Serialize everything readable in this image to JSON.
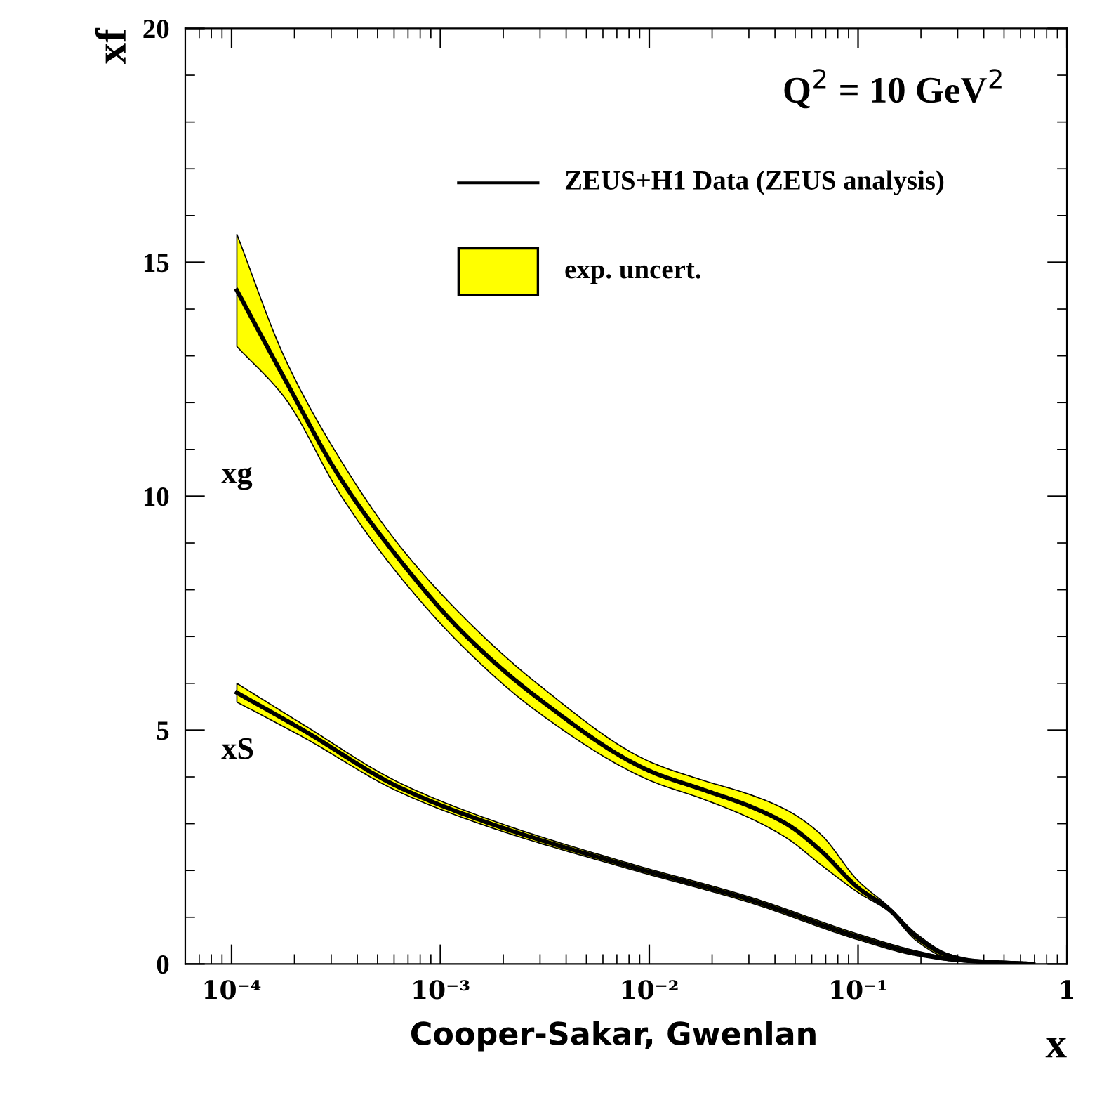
{
  "chart_data": {
    "type": "line",
    "xlabel": "x",
    "ylabel": "xf",
    "annotations": [
      "Q$^{2}$ = 10 GeV$^{2}$",
      "ZEUS+H1 Data (ZEUS analysis)",
      "exp. uncert.",
      "Cooper-Sakar, Gwenlan"
    ],
    "series": [
      {
        "name": "xg",
        "color": "#000000",
        "x": [
          0.000106,
          0.00018,
          0.00033,
          0.00061,
          0.00127,
          0.0029,
          0.01,
          0.018,
          0.03,
          0.046,
          0.066,
          0.1,
          0.14,
          0.19,
          0.27,
          0.37,
          0.69
        ],
        "values": [
          14.4,
          12.5,
          10.4,
          8.75,
          7.1,
          5.7,
          4.13,
          3.73,
          3.38,
          2.98,
          2.43,
          1.63,
          1.18,
          0.58,
          0.18,
          0.06,
          0.0
        ],
        "lower": [
          13.2,
          12.1,
          10.05,
          8.4,
          6.8,
          5.4,
          3.93,
          3.53,
          3.13,
          2.68,
          2.13,
          1.53,
          1.13,
          0.5,
          0.12,
          0.03,
          0.0
        ],
        "upper": [
          15.6,
          12.95,
          10.8,
          9.05,
          7.45,
          6.0,
          4.33,
          3.93,
          3.63,
          3.28,
          2.78,
          1.78,
          1.23,
          0.65,
          0.22,
          0.08,
          0.0
        ]
      },
      {
        "name": "xS",
        "color": "#000000",
        "x": [
          0.000106,
          0.00022,
          0.00062,
          0.00174,
          0.0082,
          0.03,
          0.1,
          0.19,
          0.31,
          0.69
        ],
        "values": [
          5.8,
          5.0,
          3.8,
          3.0,
          2.08,
          1.38,
          0.58,
          0.23,
          0.08,
          0.0
        ],
        "lower": [
          5.6,
          4.85,
          3.7,
          2.92,
          2.02,
          1.32,
          0.52,
          0.18,
          0.05,
          0.0
        ],
        "upper": [
          6.0,
          5.12,
          3.9,
          3.08,
          2.14,
          1.44,
          0.64,
          0.28,
          0.1,
          0.0
        ]
      }
    ],
    "xlim": [
      6e-05,
      1
    ],
    "ylim": [
      0,
      20
    ],
    "log": "x",
    "xticks": [
      {
        "value": 0.0001,
        "label": "10⁻⁴"
      },
      {
        "value": 0.001,
        "label": "10⁻³"
      },
      {
        "value": 0.01,
        "label": "10⁻²"
      },
      {
        "value": 0.1,
        "label": "10⁻¹"
      },
      1
    ],
    "yticks": [
      0,
      5,
      10,
      15,
      20
    ],
    "grid": false,
    "marker": "none",
    "line_style": "solid"
  }
}
